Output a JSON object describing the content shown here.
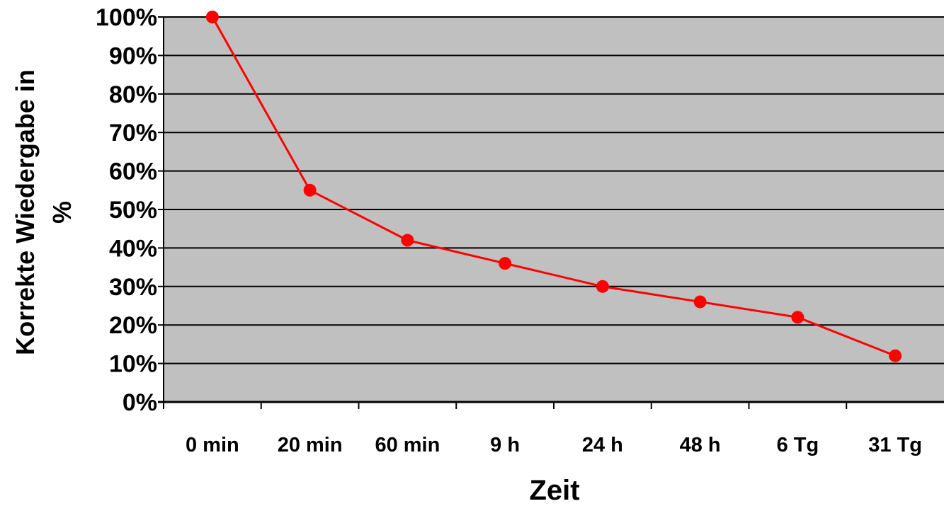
{
  "chart_data": {
    "type": "line",
    "title": "",
    "xlabel": "Zeit",
    "ylabel": "Korrekte Wiedergabe in %",
    "ylabel_lines": [
      "Korrekte Wiedergabe in",
      "%"
    ],
    "categories": [
      "0 min",
      "20 min",
      "60 min",
      "9 h",
      "24 h",
      "48 h",
      "6 Tg",
      "31 Tg"
    ],
    "values": [
      100,
      55,
      42,
      36,
      30,
      26,
      22,
      12
    ],
    "ylim": [
      0,
      100
    ],
    "yticks": [
      0,
      10,
      20,
      30,
      40,
      50,
      60,
      70,
      80,
      90,
      100
    ],
    "ytick_labels": [
      "0%",
      "10%",
      "20%",
      "30%",
      "40%",
      "50%",
      "60%",
      "70%",
      "80%",
      "90%",
      "100%"
    ],
    "grid": true,
    "legend": "none",
    "colors": {
      "line": "#ff0000",
      "plot_background": "#c0c0c0",
      "gridline": "#000000"
    }
  }
}
